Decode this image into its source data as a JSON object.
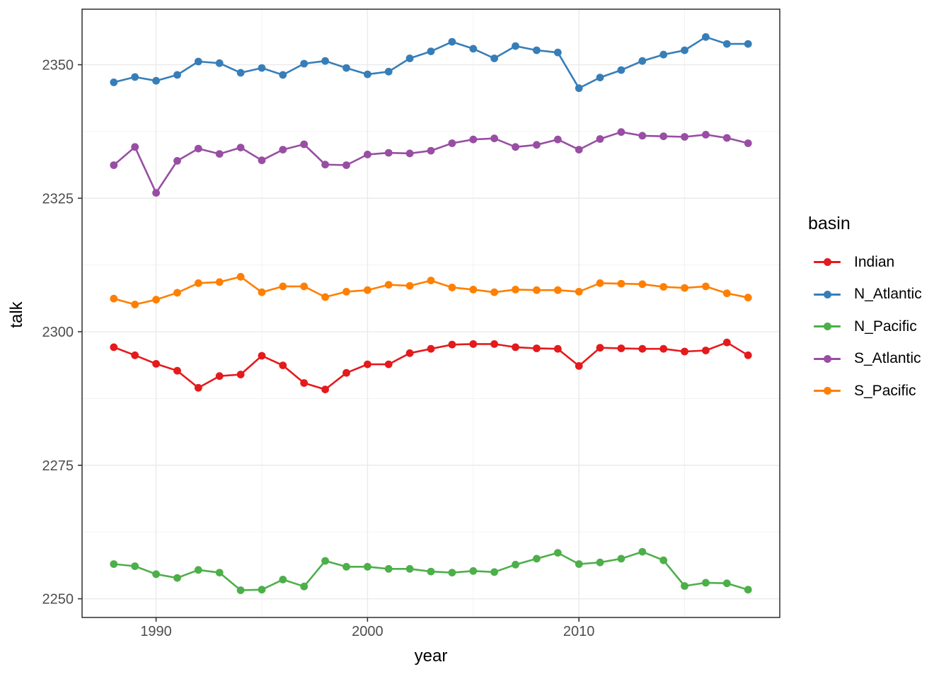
{
  "figure": {
    "background": "#ffffff",
    "panel": {
      "border_color": "#2f2f2f",
      "grid_major_color": "#ebebeb",
      "grid_minor_color": "#f1f1f1",
      "tick_color": "#333333",
      "tick_label_color": "#4d4d4d"
    }
  },
  "legend": {
    "title": "basin",
    "entries": [
      {
        "label": "Indian",
        "color": "#E41A1C"
      },
      {
        "label": "N_Atlantic",
        "color": "#377EB8"
      },
      {
        "label": "N_Pacific",
        "color": "#4DAF4A"
      },
      {
        "label": "S_Atlantic",
        "color": "#984EA3"
      },
      {
        "label": "S_Pacific",
        "color": "#FF7F00"
      }
    ]
  },
  "chart_data": {
    "type": "line",
    "title": "",
    "xlabel": "year",
    "ylabel": "talk",
    "legend_title": "basin",
    "legend_position": "right",
    "grid": true,
    "xlim": [
      1986.5,
      2019.5
    ],
    "ylim": [
      2246.5,
      2360.4
    ],
    "x_ticks": [
      1990,
      2000,
      2010
    ],
    "x_minor_ticks": [
      1995,
      2005,
      2015
    ],
    "y_ticks": [
      2250,
      2275,
      2300,
      2325,
      2350
    ],
    "y_minor_ticks": [
      2262.5,
      2287.5,
      2312.5,
      2337.5
    ],
    "x": [
      1988,
      1989,
      1990,
      1991,
      1992,
      1993,
      1994,
      1995,
      1996,
      1997,
      1998,
      1999,
      2000,
      2001,
      2002,
      2003,
      2004,
      2005,
      2006,
      2007,
      2008,
      2009,
      2010,
      2011,
      2012,
      2013,
      2014,
      2015,
      2016,
      2017,
      2018
    ],
    "series": [
      {
        "name": "Indian",
        "color": "#E41A1C",
        "values": [
          2297.1,
          2295.6,
          2294.0,
          2292.7,
          2289.5,
          2291.7,
          2292.0,
          2295.5,
          2293.7,
          2290.4,
          2289.2,
          2292.3,
          2293.9,
          2293.9,
          2296.0,
          2296.8,
          2297.6,
          2297.7,
          2297.7,
          2297.1,
          2296.9,
          2296.8,
          2293.6,
          2297.0,
          2296.9,
          2296.8,
          2296.8,
          2296.3,
          2296.5,
          2298.0,
          2295.6
        ]
      },
      {
        "name": "N_Atlantic",
        "color": "#377EB8",
        "values": [
          2346.7,
          2347.7,
          2347.0,
          2348.1,
          2350.6,
          2350.3,
          2348.5,
          2349.4,
          2348.1,
          2350.2,
          2350.7,
          2349.4,
          2348.2,
          2348.7,
          2351.2,
          2352.5,
          2354.3,
          2353.0,
          2351.2,
          2353.5,
          2352.7,
          2352.3,
          2345.6,
          2347.6,
          2349.0,
          2350.7,
          2351.9,
          2352.7,
          2355.2,
          2353.9,
          2353.9
        ]
      },
      {
        "name": "N_Pacific",
        "color": "#4DAF4A",
        "values": [
          2256.5,
          2256.1,
          2254.6,
          2253.9,
          2255.4,
          2254.9,
          2251.6,
          2251.7,
          2253.6,
          2252.3,
          2257.1,
          2256.0,
          2256.0,
          2255.6,
          2255.6,
          2255.1,
          2254.9,
          2255.2,
          2255.0,
          2256.4,
          2257.5,
          2258.6,
          2256.5,
          2256.8,
          2257.5,
          2258.8,
          2257.2,
          2252.4,
          2253.0,
          2252.9,
          2251.7
        ]
      },
      {
        "name": "S_Atlantic",
        "color": "#984EA3",
        "values": [
          2331.2,
          2334.6,
          2326.0,
          2332.0,
          2334.3,
          2333.3,
          2334.5,
          2332.1,
          2334.1,
          2335.1,
          2331.3,
          2331.2,
          2333.2,
          2333.5,
          2333.4,
          2333.9,
          2335.3,
          2336.0,
          2336.2,
          2334.6,
          2335.0,
          2336.0,
          2334.1,
          2336.1,
          2337.4,
          2336.7,
          2336.6,
          2336.5,
          2336.9,
          2336.3,
          2335.3
        ]
      },
      {
        "name": "S_Pacific",
        "color": "#FF7F00",
        "values": [
          2306.2,
          2305.1,
          2306.0,
          2307.3,
          2309.1,
          2309.3,
          2310.3,
          2307.4,
          2308.5,
          2308.5,
          2306.5,
          2307.5,
          2307.8,
          2308.8,
          2308.6,
          2309.6,
          2308.3,
          2307.9,
          2307.4,
          2307.9,
          2307.8,
          2307.8,
          2307.5,
          2309.1,
          2309.0,
          2308.9,
          2308.4,
          2308.2,
          2308.5,
          2307.2,
          2306.4
        ]
      }
    ]
  }
}
